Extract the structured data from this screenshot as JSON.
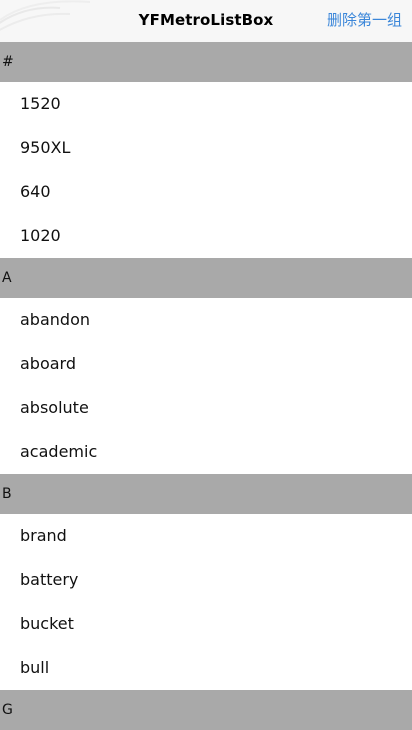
{
  "navbar": {
    "title": "YFMetroListBox",
    "action_label": "删除第一组"
  },
  "sections": [
    {
      "header": "#",
      "items": [
        "1520",
        "950XL",
        "640",
        "1020"
      ]
    },
    {
      "header": "A",
      "items": [
        "abandon",
        "aboard",
        "absolute",
        "academic"
      ]
    },
    {
      "header": "B",
      "items": [
        "brand",
        "battery",
        "bucket",
        "bull"
      ]
    },
    {
      "header": "G",
      "items": []
    }
  ]
}
